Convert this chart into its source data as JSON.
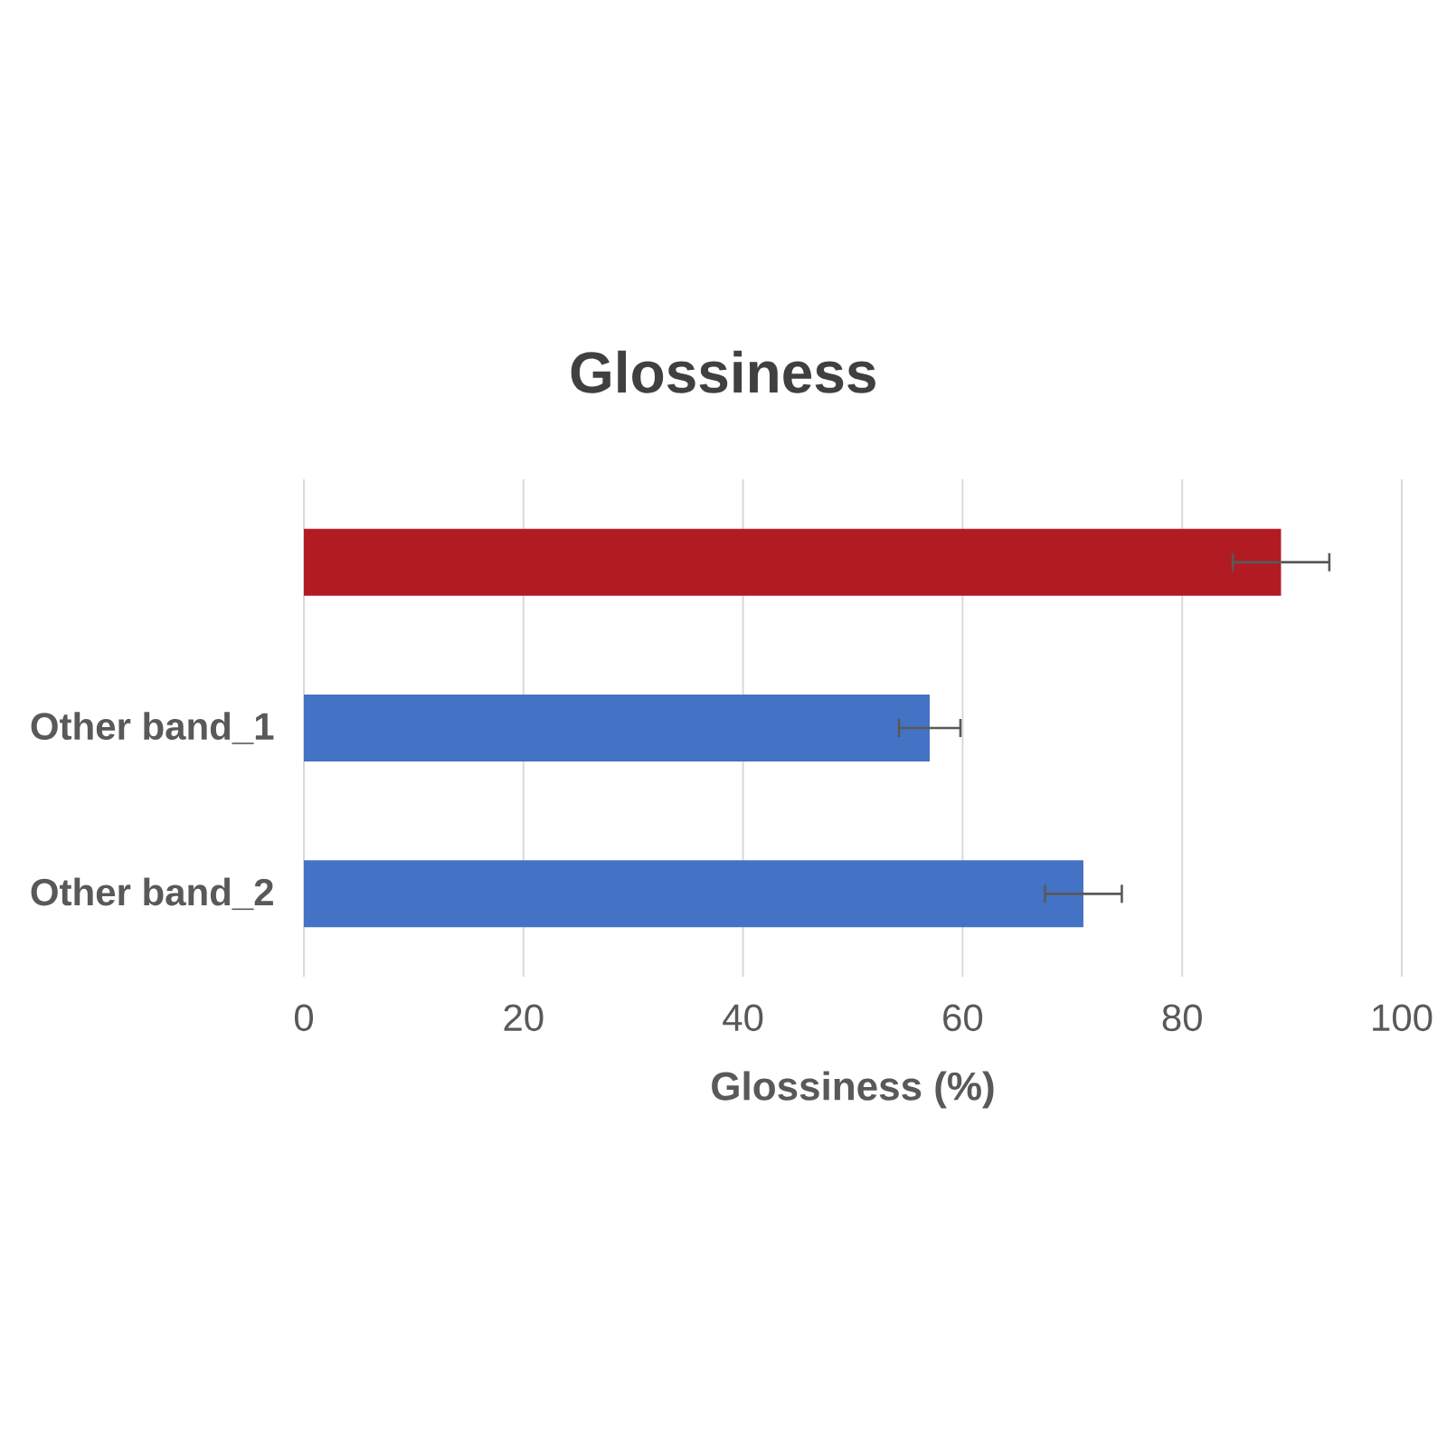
{
  "chart_data": {
    "type": "bar",
    "orientation": "horizontal",
    "title": "Glossiness",
    "xlabel": "Glossiness (%)",
    "categories": [
      null,
      "Other band_1",
      "Other band_2"
    ],
    "values": [
      89,
      57,
      71
    ],
    "errors": [
      4.4,
      2.8,
      3.5
    ],
    "colors": [
      "#b31b23",
      "#4472c4",
      "#4472c4"
    ],
    "xlim": [
      0,
      100
    ],
    "xticks": [
      0,
      20,
      40,
      60,
      80,
      100
    ],
    "grid": "x"
  }
}
